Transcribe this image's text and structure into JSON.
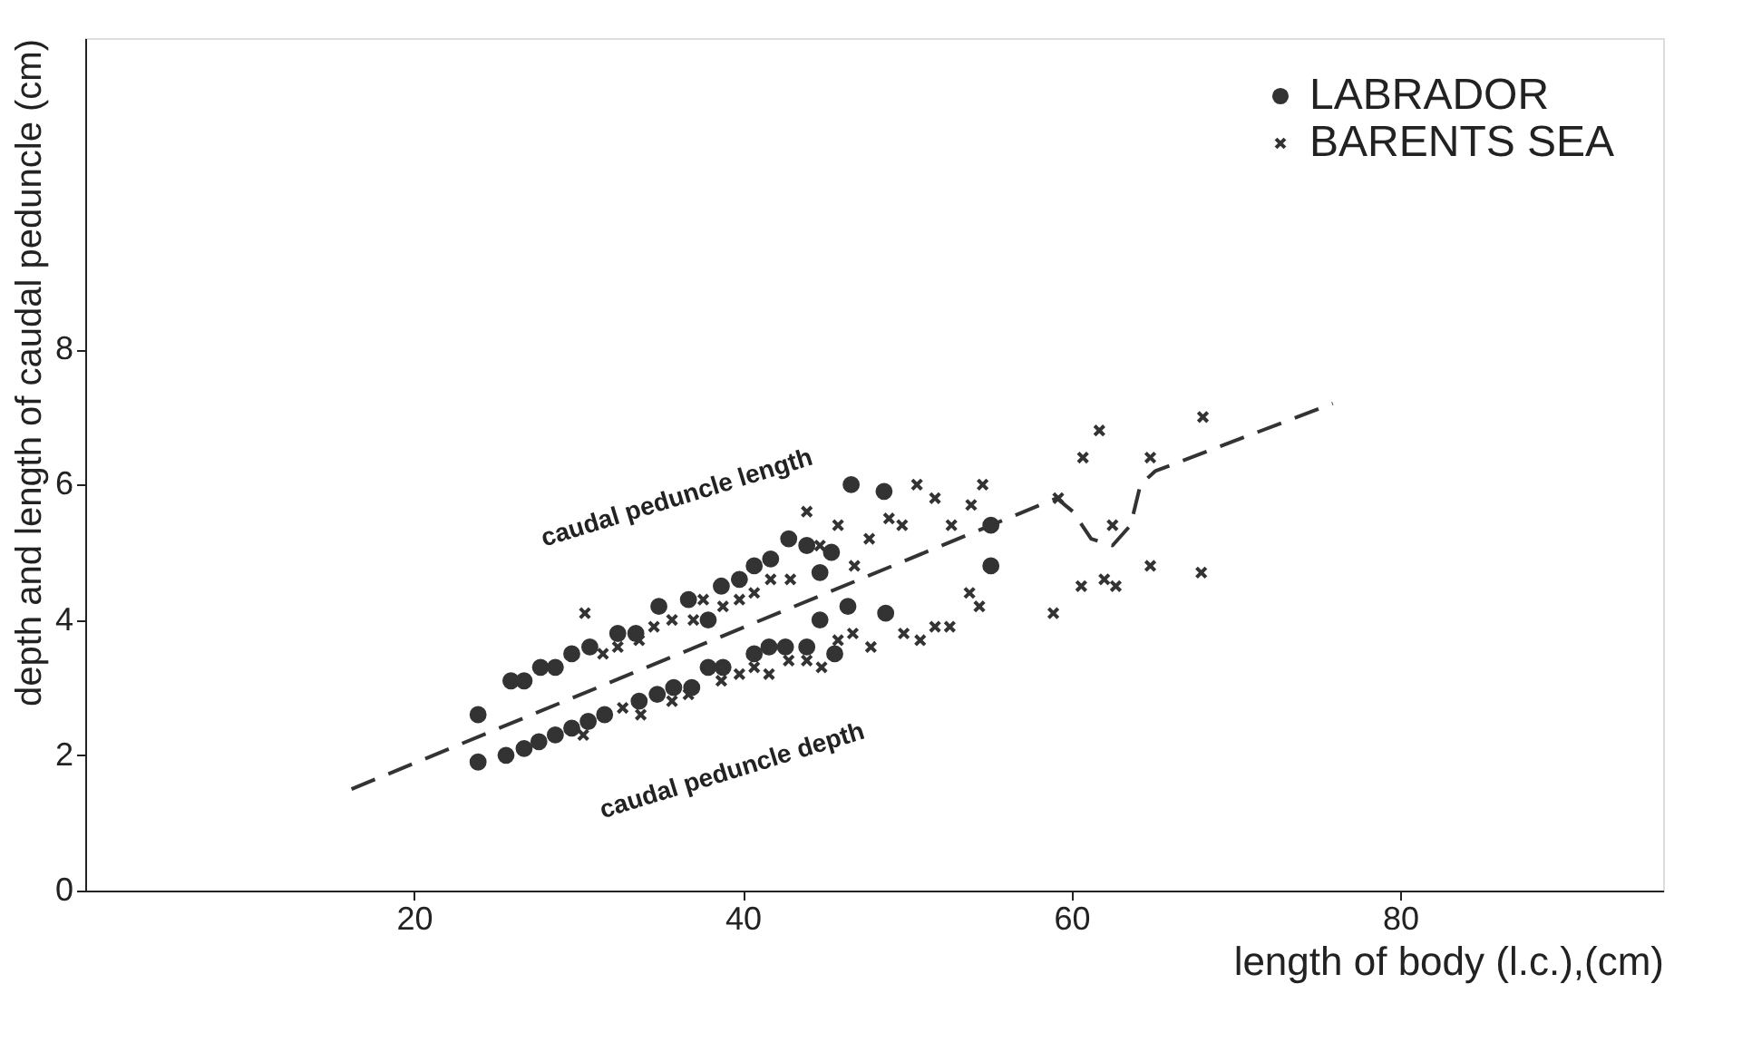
{
  "chart_data": {
    "type": "scatter",
    "xlabel": "length of  body (l.c.),(cm)",
    "ylabel": "depth and length of caudal peduncle (cm)",
    "xlim": [
      0,
      96
    ],
    "ylim": [
      0,
      12.6
    ],
    "xticks": [
      20,
      40,
      60,
      80
    ],
    "yticks": [
      0,
      2,
      4,
      6,
      8
    ],
    "grid": false,
    "legend": "top right",
    "series": [
      {
        "name": "LABRADOR",
        "color": "#333333",
        "marker": "circle",
        "x": [
          23.9,
          23.9,
          25.6,
          26.7,
          27.6,
          28.6,
          29.6,
          30.6,
          31.6,
          33.7,
          34.8,
          35.8,
          36.9,
          37.9,
          38.8,
          40.7,
          41.6,
          42.6,
          43.9,
          44.7,
          45.6,
          46.4,
          48.7,
          55.1,
          25.9,
          26.7,
          27.7,
          28.6,
          29.6,
          30.7,
          32.4,
          33.5,
          34.9,
          36.7,
          37.9,
          38.7,
          39.8,
          40.7,
          41.7,
          42.8,
          43.9,
          44.7,
          45.4,
          46.6,
          48.6,
          55.1
        ],
        "values": [
          2.6,
          1.9,
          2.0,
          2.1,
          2.2,
          2.3,
          2.4,
          2.5,
          2.6,
          2.8,
          2.9,
          3.0,
          3.0,
          3.3,
          3.3,
          3.5,
          3.6,
          3.6,
          3.6,
          4.0,
          3.5,
          4.2,
          4.1,
          4.8,
          3.1,
          3.1,
          3.3,
          3.3,
          3.5,
          3.6,
          3.8,
          3.8,
          4.2,
          4.3,
          4.0,
          4.5,
          4.6,
          4.8,
          4.9,
          5.2,
          5.1,
          4.7,
          5.0,
          6.0,
          5.9,
          5.4
        ]
      },
      {
        "name": "BARENTS  SEA",
        "color": "#333333",
        "marker": "cross",
        "x": [
          30.4,
          31.5,
          32.4,
          33.7,
          34.6,
          30.3,
          32.7,
          33.8,
          50.6,
          51.7,
          53.9,
          43.9,
          45.8,
          48.9,
          49.7,
          52.7,
          47.7,
          46.8,
          44.7,
          41.7,
          42.9,
          37.6,
          38.8,
          39.8,
          40.7,
          35.7,
          37.0,
          35.7,
          36.7,
          38.7,
          39.8,
          40.7,
          41.6,
          42.8,
          43.9,
          44.8,
          45.8,
          46.7,
          47.8,
          49.8,
          50.8,
          51.7,
          52.6,
          53.8,
          54.4,
          68.0,
          61.7,
          60.7,
          64.8,
          54.6,
          59.2,
          62.5,
          64.8,
          67.9,
          60.6,
          62.0,
          62.7,
          58.9
        ],
        "values": [
          4.1,
          3.5,
          3.6,
          3.7,
          3.9,
          2.3,
          2.7,
          2.6,
          6.0,
          5.8,
          5.7,
          5.6,
          5.4,
          5.5,
          5.4,
          5.4,
          5.2,
          4.8,
          5.1,
          4.6,
          4.6,
          4.3,
          4.2,
          4.3,
          4.4,
          4.0,
          4.0,
          2.8,
          2.9,
          3.1,
          3.2,
          3.3,
          3.2,
          3.4,
          3.4,
          3.3,
          3.7,
          3.8,
          3.6,
          3.8,
          3.7,
          3.9,
          3.9,
          4.4,
          4.2,
          7.0,
          6.8,
          6.4,
          6.4,
          6.0,
          5.8,
          5.4,
          4.8,
          4.7,
          4.5,
          4.6,
          4.5,
          4.1
        ]
      },
      {
        "type": "line",
        "color": "#333333",
        "line_style": "dashed",
        "x": [
          16.2,
          59.1,
          60.1,
          61.2,
          62.5,
          63.6,
          64.2,
          65.1,
          75.9
        ],
        "values": [
          1.5,
          5.8,
          5.6,
          5.2,
          5.1,
          5.4,
          6.0,
          6.2,
          7.2
        ]
      }
    ],
    "annotations": [
      "caudal  peduncle length",
      "caudal  peduncle  depth"
    ]
  }
}
